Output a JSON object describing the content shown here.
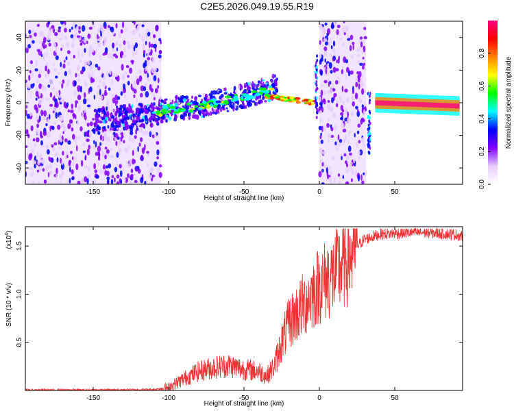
{
  "title": "C2E5.2026.049.19.55.R19",
  "chart_data": [
    {
      "type": "heatmap",
      "xlabel": "Height of straight line (km)",
      "ylabel": "Frequency (Hz)",
      "xlim": [
        -195,
        95
      ],
      "ylim": [
        -50,
        50
      ],
      "xticks": [
        -150,
        -100,
        -50,
        0,
        50
      ],
      "yticks": [
        -40,
        -20,
        0,
        20,
        40
      ],
      "colorbar": {
        "label": "Normalized spectral amplitude",
        "range": [
          0.0,
          1.0
        ],
        "ticks": [
          "0.0",
          "0.2",
          "0.4",
          "0.6",
          "0.8"
        ],
        "colors": [
          "#ffffff",
          "#e6ccff",
          "#8000ff",
          "#0000ff",
          "#00ffff",
          "#00ff00",
          "#ffff00",
          "#ff8000",
          "#ff0000",
          "#ff0080"
        ]
      },
      "regions": [
        {
          "name": "scatter-left",
          "x": [
            -195,
            -105
          ],
          "y": [
            -50,
            50
          ],
          "intensity": 0.25
        },
        {
          "name": "ridge-rising",
          "x": [
            -150,
            -30
          ],
          "y": [
            -10,
            14
          ],
          "intensity": 0.55
        },
        {
          "name": "ridge-descending",
          "x": [
            -30,
            -5
          ],
          "y": [
            -2,
            4
          ],
          "intensity": 0.9
        },
        {
          "name": "scatter-mid",
          "x": [
            0,
            31
          ],
          "y": [
            -50,
            50
          ],
          "intensity": 0.25
        },
        {
          "name": "ridge-right",
          "x": [
            35,
            95
          ],
          "y": [
            -2,
            2
          ],
          "intensity": 0.95
        }
      ]
    },
    {
      "type": "line",
      "xlabel": "Height of straight line (km)",
      "ylabel": "SNR (10 * v/v)",
      "ylabel_multiplier": "(x10",
      "ylabel_exponent": "4",
      "xlim": [
        -195,
        95
      ],
      "ylim": [
        0,
        1.7
      ],
      "xticks": [
        -150,
        -100,
        -50,
        0,
        50
      ],
      "yticks": [
        "0.5",
        "1.0",
        "1.5"
      ],
      "color": "#ee3333",
      "x": [
        -195,
        -150,
        -110,
        -100,
        -90,
        -80,
        -70,
        -60,
        -50,
        -40,
        -35,
        -30,
        -25,
        -20,
        -15,
        -10,
        -5,
        0,
        5,
        10,
        15,
        20,
        25,
        30,
        40,
        50,
        60,
        70,
        80,
        90,
        95
      ],
      "y": [
        0.005,
        0.005,
        0.01,
        0.03,
        0.12,
        0.2,
        0.24,
        0.26,
        0.22,
        0.2,
        0.15,
        0.25,
        0.5,
        0.7,
        0.8,
        0.9,
        1.0,
        1.1,
        1.15,
        1.2,
        1.3,
        1.4,
        1.5,
        1.57,
        1.62,
        1.63,
        1.64,
        1.64,
        1.63,
        1.62,
        1.6
      ]
    }
  ]
}
